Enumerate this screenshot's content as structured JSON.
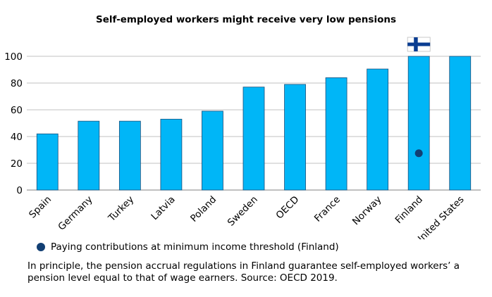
{
  "chart_data": {
    "type": "bar",
    "title": "Self-employed workers might receive very low pensions",
    "categories": [
      "Spain",
      "Germany",
      "Turkey",
      "Latvia",
      "Poland",
      "Sweden",
      "OECD",
      "France",
      "Norway",
      "Finland",
      "United States"
    ],
    "values": [
      42,
      51.5,
      51.5,
      53,
      59,
      77,
      79,
      84,
      90.5,
      100,
      100
    ],
    "markers": [
      {
        "category": "Finland",
        "value": 27.5,
        "label": "Paying contributions at minimum income threshold (Finland)"
      }
    ],
    "flag": {
      "category": "Finland",
      "icon": "finland-flag-icon"
    },
    "ylim": [
      0,
      100
    ],
    "yticks": [
      0,
      20,
      40,
      60,
      80,
      100
    ],
    "xlabel": "",
    "ylabel": "",
    "grid": true,
    "colors": {
      "bar": "#00b6f7",
      "bar_border": "#1b4f7a",
      "marker": "#123f73",
      "grid": "#c0c0c0"
    }
  },
  "legend": {
    "label": "Paying contributions at minimum income threshold (Finland)"
  },
  "footnote": "In principle, the pension accrual regulations in Finland guarantee self-employed workers’ a pension level equal to that of wage earners. Source: OECD 2019."
}
